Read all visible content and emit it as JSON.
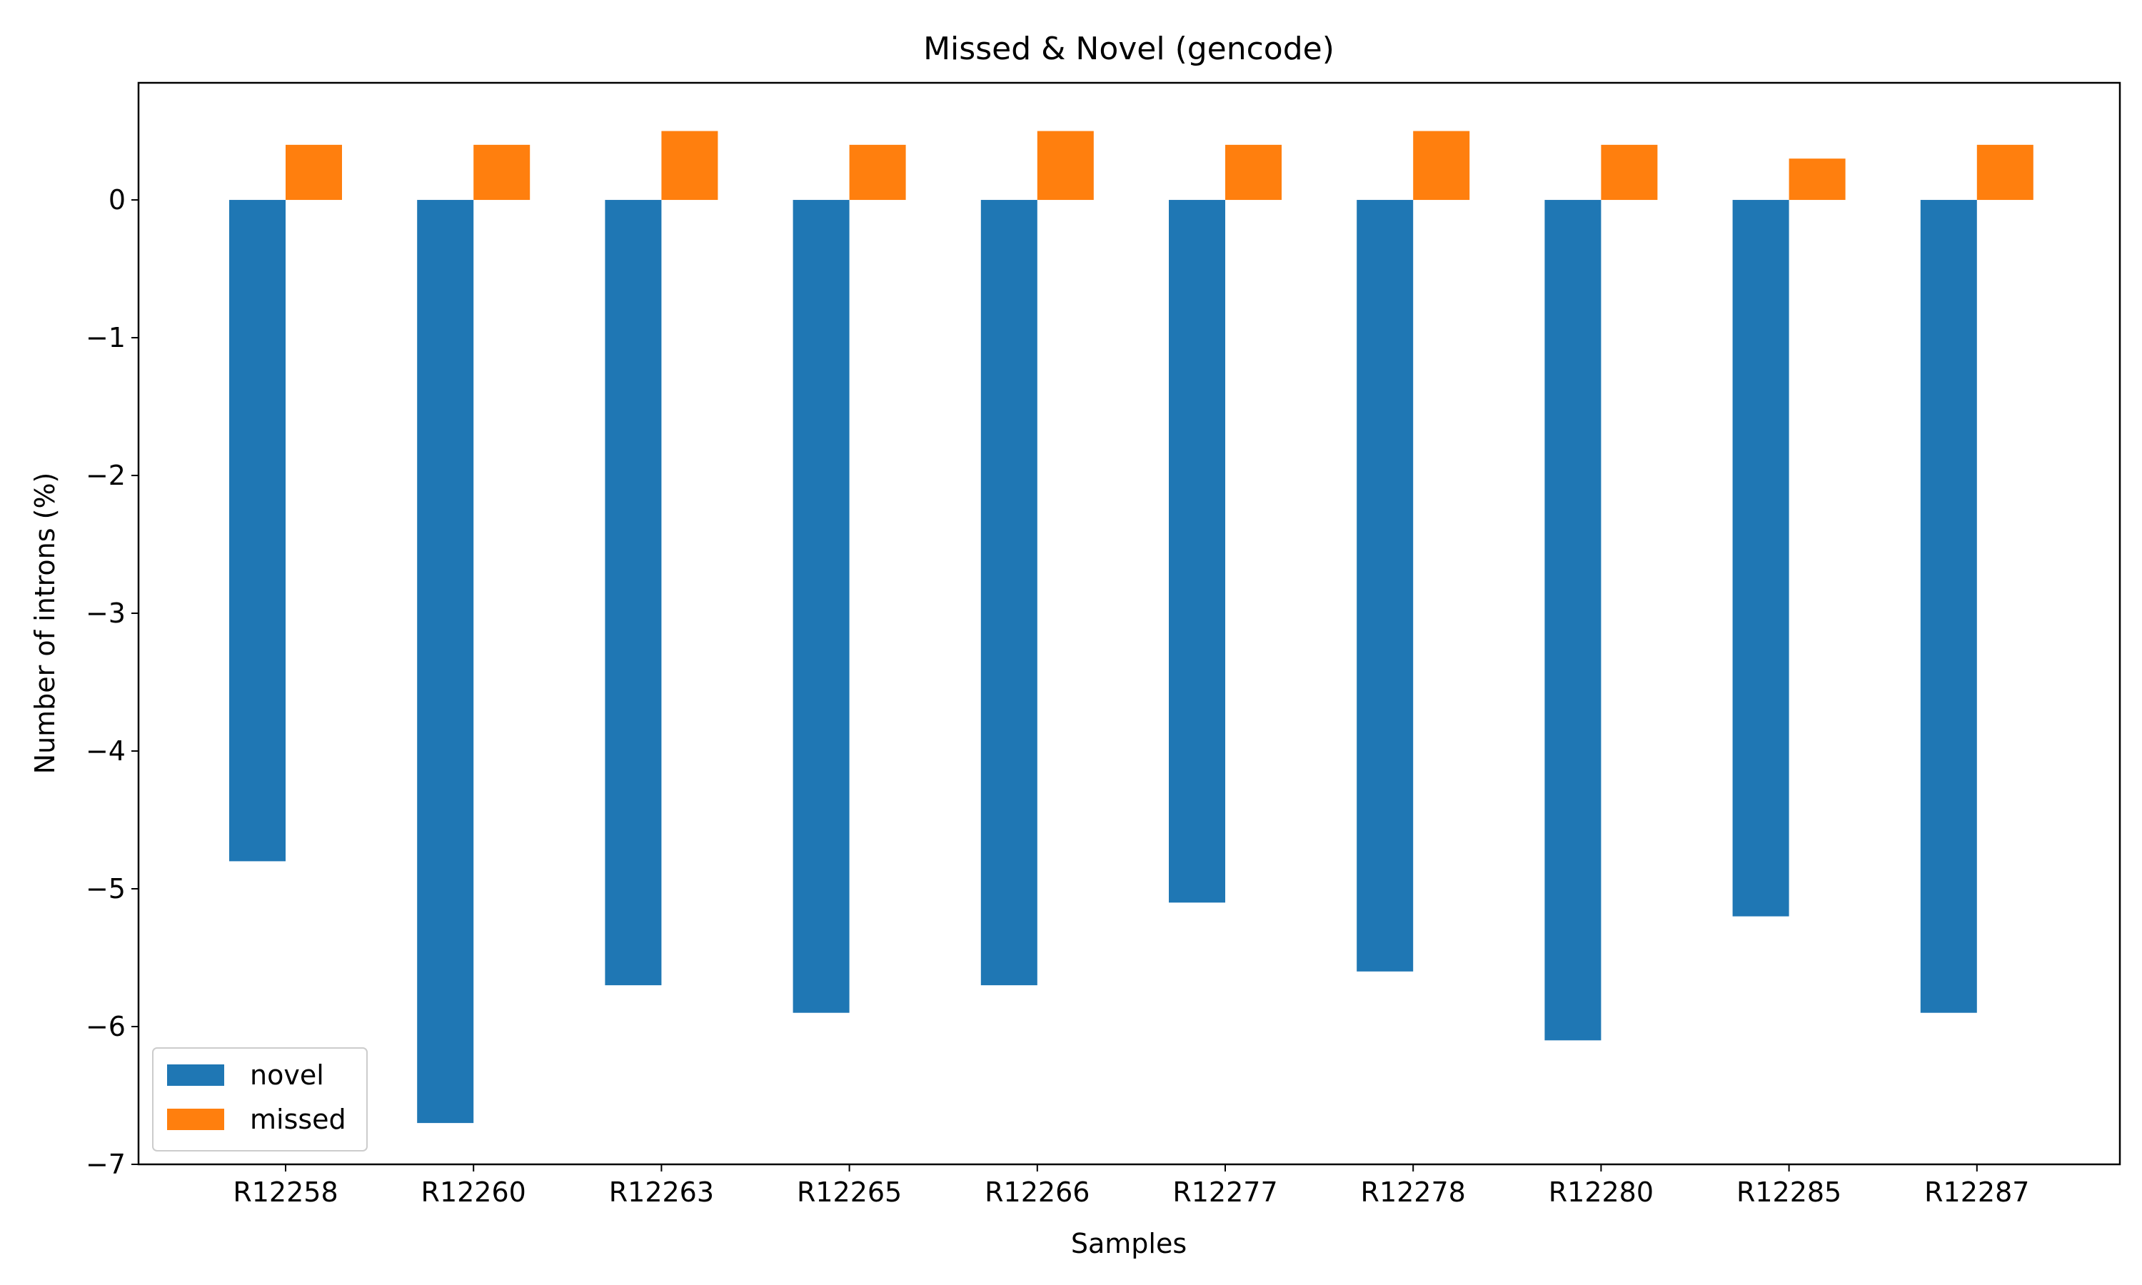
{
  "chart_data": {
    "type": "bar",
    "title": "Missed & Novel (gencode)",
    "xlabel": "Samples",
    "ylabel": "Number of introns (%)",
    "categories": [
      "R12258",
      "R12260",
      "R12263",
      "R12265",
      "R12266",
      "R12277",
      "R12278",
      "R12280",
      "R12285",
      "R12287"
    ],
    "series": [
      {
        "name": "novel",
        "color": "#1f77b4",
        "values": [
          -4.8,
          -6.7,
          -5.7,
          -5.9,
          -5.7,
          -5.1,
          -5.6,
          -6.1,
          -5.2,
          -5.9
        ]
      },
      {
        "name": "missed",
        "color": "#ff7f0e",
        "values": [
          0.4,
          0.4,
          0.5,
          0.4,
          0.5,
          0.4,
          0.5,
          0.4,
          0.3,
          0.4
        ]
      }
    ],
    "ylim": [
      -7.0,
      0.85
    ],
    "yticks": [
      0,
      -1,
      -2,
      -3,
      -4,
      -5,
      -6,
      -7
    ],
    "ytick_labels": [
      "0",
      "−1",
      "−2",
      "−3",
      "−4",
      "−5",
      "−6",
      "−7"
    ],
    "legend": "lower-left",
    "grid": false
  }
}
